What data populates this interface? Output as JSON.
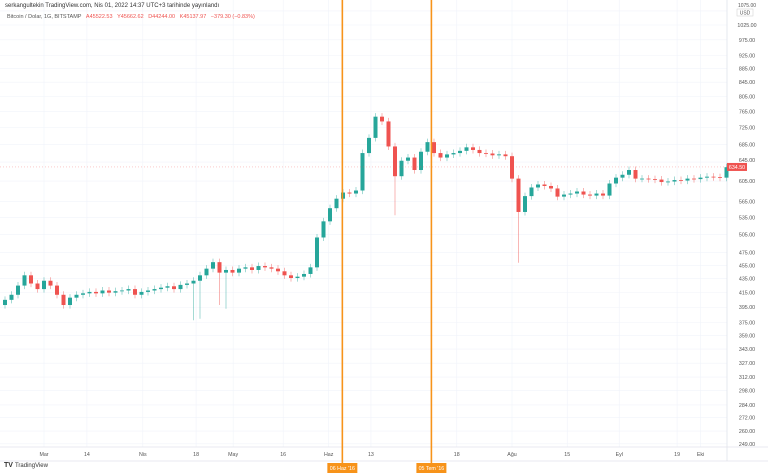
{
  "header": {
    "published": "serkangultekin TradingView.com, Nis 01, 2022 14:37 UTC+3 tarihinde yayınlandı",
    "symbol": "Bitcoin / Dolar, 1G, BITSTAMP",
    "open": "A45522.53",
    "high": "Y45662.62",
    "low": "D44244.00",
    "close": "K45137.97",
    "change": "−379.30 (−0.83%)"
  },
  "footer": {
    "logo_text": "TradingView"
  },
  "colors": {
    "up": "#26a69a",
    "down": "#ef5350",
    "marker": "#f7931a",
    "grid": "#f0f3fa"
  },
  "chart_data": {
    "type": "candlestick",
    "title": "Bitcoin / Dolar, 1G, BITSTAMP",
    "scale": "log",
    "currency": "USD",
    "ylim": [
      245,
      1090
    ],
    "y_ticks": [
      "1075.00",
      "1025.00",
      "975.00",
      "925.00",
      "885.00",
      "845.00",
      "805.00",
      "765.00",
      "725.00",
      "685.00",
      "645.00",
      "605.00",
      "565.00",
      "535.00",
      "505.00",
      "475.00",
      "455.00",
      "435.00",
      "415.00",
      "395.00",
      "375.00",
      "359.00",
      "343.00",
      "327.00",
      "312.00",
      "298.00",
      "284.00",
      "272.00",
      "260.00",
      "249.00"
    ],
    "y_tick_values": [
      1075,
      1025,
      975,
      925,
      885,
      845,
      805,
      765,
      725,
      685,
      645,
      605,
      565,
      535,
      505,
      475,
      455,
      435,
      415,
      395,
      375,
      359,
      343,
      327,
      312,
      298,
      284,
      272,
      260,
      249
    ],
    "x_ticks": [
      {
        "label": "Mar",
        "index": 6
      },
      {
        "label": "14",
        "index": 12.6
      },
      {
        "label": "Nis",
        "index": 21.2
      },
      {
        "label": "18",
        "index": 29.4
      },
      {
        "label": "May",
        "index": 35.1
      },
      {
        "label": "16",
        "index": 42.8
      },
      {
        "label": "Haz",
        "index": 49.8
      },
      {
        "label": "13",
        "index": 56.3
      },
      {
        "label": "18",
        "index": 69.5
      },
      {
        "label": "Ağu",
        "index": 78
      },
      {
        "label": "15",
        "index": 86.5
      },
      {
        "label": "Eyl",
        "index": 94.5
      },
      {
        "label": "19",
        "index": 103.4
      },
      {
        "label": "Eki",
        "index": 107
      }
    ],
    "closes": [
      405,
      412,
      425,
      440,
      428,
      420,
      432,
      425,
      412,
      398,
      408,
      412,
      414,
      416,
      414,
      418,
      415,
      417,
      418,
      420,
      412,
      416,
      418,
      420,
      422,
      424,
      420,
      426,
      428,
      432,
      440,
      450,
      460,
      444,
      448,
      444,
      450,
      452,
      448,
      454,
      452,
      450,
      446,
      440,
      436,
      438,
      442,
      452,
      500,
      528,
      552,
      570,
      582,
      580,
      586,
      665,
      700,
      752,
      740,
      680,
      615,
      648,
      655,
      628,
      668,
      690,
      665,
      655,
      662,
      665,
      670,
      678,
      672,
      665,
      664,
      660,
      662,
      658,
      610,
      545,
      575,
      592,
      598,
      595,
      590,
      574,
      578,
      580,
      584,
      578,
      576,
      580,
      576,
      600,
      612,
      618,
      628,
      610,
      610,
      609,
      608,
      603,
      604,
      607,
      606,
      610,
      609,
      612,
      614,
      613,
      612,
      634
    ],
    "first_open": 398,
    "long_wick_lows": {
      "29": 378,
      "30": 380,
      "33": 398,
      "34": 393,
      "60": 539,
      "79": 459
    },
    "markers": [
      {
        "label": "06 Haz '16",
        "index": 51.9
      },
      {
        "label": "05 Tem '16",
        "index": 65.6
      }
    ],
    "last_price": "634.50"
  }
}
